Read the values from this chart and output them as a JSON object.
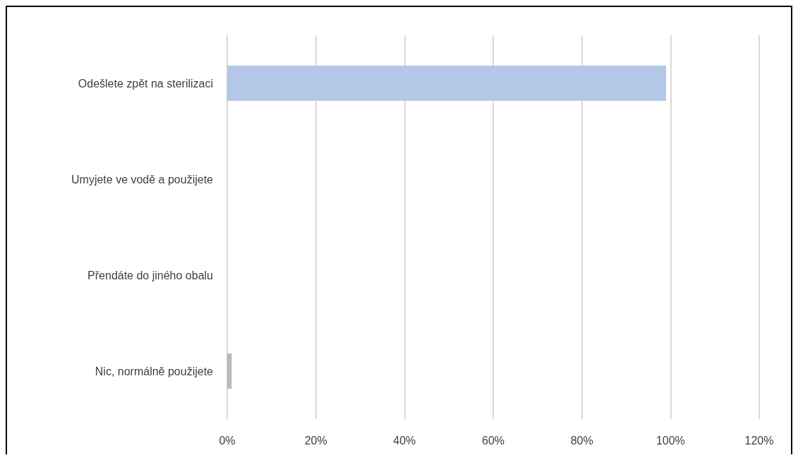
{
  "chart_data": {
    "type": "bar",
    "orientation": "horizontal",
    "categories": [
      "Odešlete zpět na sterilizaci",
      "Umyjete ve vodě a použijete",
      "Přendáte do jiného obalu",
      "Nic, normálně použijete"
    ],
    "values": [
      99,
      0,
      0,
      1
    ],
    "colors": [
      "#b4c7e7",
      "#b4c7e7",
      "#b4c7e7",
      "#bcb8b8"
    ],
    "xlim": [
      0,
      120
    ],
    "xticks": [
      {
        "value": 0,
        "label": "0%"
      },
      {
        "value": 20,
        "label": "20%"
      },
      {
        "value": 40,
        "label": "40%"
      },
      {
        "value": 60,
        "label": "60%"
      },
      {
        "value": 80,
        "label": "80%"
      },
      {
        "value": 100,
        "label": "100%"
      },
      {
        "value": 120,
        "label": "120%"
      }
    ],
    "grid": "x"
  }
}
